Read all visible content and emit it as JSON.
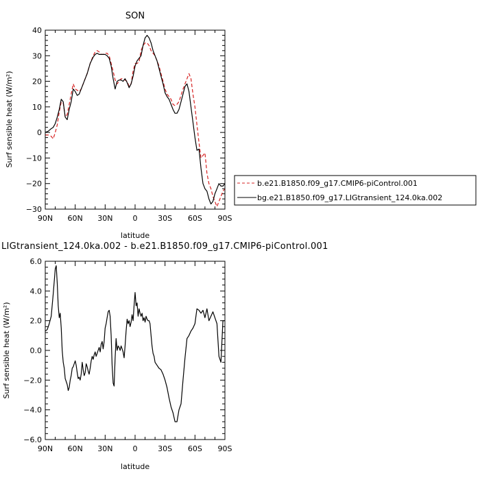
{
  "chart_data": [
    {
      "type": "line",
      "title": "SON",
      "xlabel": "latitude",
      "ylabel": "Surf sensible heat (W/m²)",
      "xlim": [
        90,
        -90
      ],
      "ylim": [
        -30,
        40
      ],
      "xticks": [
        90,
        60,
        30,
        0,
        -30,
        -60,
        -90
      ],
      "xtick_labels": [
        "90N",
        "60N",
        "30N",
        "0",
        "30S",
        "60S",
        "90S"
      ],
      "yticks": [
        -30,
        -20,
        -10,
        0,
        10,
        20,
        30,
        40
      ],
      "ytick_labels": [
        "−30",
        "−20",
        "−10",
        "0",
        "10",
        "20",
        "30",
        "40"
      ],
      "legend_position": "right",
      "series": [
        {
          "name": "b.e21.B1850.f09_g17.CMIP6-piControl.001",
          "color": "#d62020",
          "dash": "dashed",
          "x": [
            90,
            87,
            84,
            82,
            80,
            78,
            76,
            74,
            72,
            70,
            68,
            66,
            64,
            62,
            60,
            58,
            56,
            54,
            52,
            50,
            48,
            45,
            42,
            40,
            38,
            36,
            34,
            32,
            30,
            28,
            26,
            24,
            22,
            20,
            18,
            16,
            14,
            12,
            10,
            8,
            6,
            4,
            2,
            0,
            -2,
            -4,
            -6,
            -8,
            -10,
            -12,
            -14,
            -16,
            -18,
            -20,
            -22,
            -24,
            -26,
            -28,
            -30,
            -32,
            -34,
            -36,
            -38,
            -40,
            -42,
            -44,
            -46,
            -48,
            -50,
            -52,
            -54,
            -56,
            -58,
            -60,
            -62,
            -64,
            -66,
            -68,
            -70,
            -72,
            -74,
            -76,
            -78,
            -80,
            -82,
            -84,
            -86,
            -88,
            -90
          ],
          "values": [
            -1,
            -1,
            -1.5,
            -2.5,
            0,
            3,
            8,
            12,
            11.5,
            6,
            7,
            11,
            15,
            19,
            17,
            16.5,
            16,
            17,
            19,
            21,
            23,
            27,
            30,
            31.5,
            32,
            31.5,
            30.5,
            30.5,
            31,
            31,
            30,
            27,
            24,
            20.5,
            19,
            20,
            21,
            21,
            20.5,
            20,
            18,
            19,
            24,
            27,
            27,
            27.5,
            32,
            34,
            35,
            35,
            34,
            32,
            31,
            30,
            28,
            26,
            23,
            20,
            17,
            15,
            14,
            13,
            11,
            10.5,
            11,
            12,
            14.5,
            17,
            19,
            21,
            23,
            21,
            15,
            10,
            3,
            -4,
            -10,
            -9,
            -8,
            -16,
            -20,
            -22,
            -25,
            -27,
            -29,
            -27,
            -25,
            -23,
            -22
          ]
        },
        {
          "name": "bg.e21.B1850.f09_g17.LIGtransient_124.0ka.002",
          "color": "#000000",
          "dash": "solid",
          "x": [
            90,
            87,
            84,
            82,
            80,
            78,
            76,
            74,
            72,
            70,
            68,
            66,
            64,
            62,
            60,
            58,
            56,
            54,
            52,
            50,
            48,
            45,
            42,
            40,
            38,
            36,
            34,
            32,
            30,
            28,
            26,
            24,
            22,
            20,
            18,
            16,
            14,
            12,
            10,
            8,
            6,
            4,
            2,
            0,
            -2,
            -4,
            -6,
            -8,
            -10,
            -12,
            -14,
            -16,
            -18,
            -20,
            -22,
            -24,
            -26,
            -28,
            -30,
            -32,
            -34,
            -36,
            -38,
            -40,
            -42,
            -44,
            -46,
            -48,
            -50,
            -52,
            -54,
            -56,
            -58,
            -60,
            -62,
            -64,
            -66,
            -68,
            -70,
            -72,
            -74,
            -76,
            -78,
            -80,
            -82,
            -84,
            -86,
            -88,
            -90
          ],
          "values": [
            0,
            0.5,
            1.5,
            2,
            3.5,
            6,
            9,
            13,
            12,
            6,
            5,
            9,
            12,
            17,
            16,
            14.5,
            15,
            17,
            19,
            21,
            23,
            27,
            29.5,
            30.5,
            31,
            30.5,
            30.5,
            30.5,
            30.5,
            30,
            29,
            26,
            21,
            17,
            20,
            20.5,
            20.5,
            20,
            21,
            19.5,
            17.5,
            19,
            22,
            26,
            28,
            29,
            30,
            34,
            37,
            38,
            37,
            35,
            32,
            30,
            28,
            25,
            22,
            19,
            15.5,
            14,
            13,
            11,
            9,
            7.5,
            7.5,
            9,
            12,
            15,
            18,
            19,
            16,
            10,
            4,
            -2,
            -7,
            -6.5,
            -14,
            -20,
            -22,
            -23,
            -26,
            -28,
            -27,
            -24,
            -22,
            -20,
            -21,
            -21,
            -20
          ]
        }
      ]
    },
    {
      "type": "line",
      "title": "LIGtransient_124.0ka.002 - b.e21.B1850.f09_g17.CMIP6-piControl.001",
      "xlabel": "latitude",
      "ylabel": "Surf sensible heat (W/m²)",
      "xlim": [
        90,
        -90
      ],
      "ylim": [
        -6,
        6
      ],
      "xticks": [
        90,
        60,
        30,
        0,
        -30,
        -60,
        -90
      ],
      "xtick_labels": [
        "90N",
        "60N",
        "30N",
        "0",
        "30S",
        "60S",
        "90S"
      ],
      "yticks": [
        -6,
        -4,
        -2,
        0,
        2,
        4,
        6
      ],
      "ytick_labels": [
        "−6.0",
        "−4.0",
        "−2.0",
        "0.0",
        "2.0",
        "4.0",
        "6.0"
      ],
      "series": [
        {
          "color": "#000000",
          "dash": "solid",
          "x": [
            90,
            88,
            86,
            84,
            82,
            80,
            79,
            78,
            77,
            76,
            75,
            74,
            73,
            72,
            71,
            70,
            69,
            68,
            67,
            66,
            65,
            64,
            63,
            62,
            61,
            60,
            59,
            58,
            57,
            56,
            55,
            54,
            53,
            52,
            51,
            50,
            49,
            48,
            47,
            46,
            45,
            44,
            43,
            42,
            41,
            40,
            39,
            38,
            37,
            36,
            35,
            34,
            33,
            32,
            31,
            30,
            29,
            28,
            27,
            26,
            25,
            24,
            23,
            22,
            21,
            20,
            19,
            18,
            17,
            16,
            15,
            14,
            13,
            12,
            11,
            10,
            9,
            8,
            7,
            6,
            5,
            4,
            3,
            2,
            1,
            0,
            -1,
            -2,
            -3,
            -4,
            -5,
            -6,
            -7,
            -8,
            -9,
            -10,
            -11,
            -12,
            -13,
            -14,
            -15,
            -16,
            -17,
            -18,
            -19,
            -20,
            -22,
            -24,
            -26,
            -28,
            -30,
            -32,
            -34,
            -36,
            -38,
            -40,
            -42,
            -44,
            -46,
            -48,
            -50,
            -52,
            -54,
            -56,
            -58,
            -60,
            -62,
            -64,
            -66,
            -68,
            -70,
            -72,
            -74,
            -76,
            -78,
            -80,
            -82,
            -84,
            -86,
            -88,
            -90
          ],
          "values": [
            1.3,
            1.4,
            1.8,
            2.3,
            3.8,
            5.5,
            5.7,
            4.5,
            3.0,
            2.2,
            2.5,
            1.5,
            0.0,
            -0.8,
            -1.2,
            -1.9,
            -2.1,
            -2.3,
            -2.7,
            -2.5,
            -2.0,
            -1.7,
            -1.2,
            -1.1,
            -0.9,
            -0.7,
            -1.0,
            -1.5,
            -1.9,
            -1.8,
            -2.0,
            -1.6,
            -0.8,
            -1.3,
            -1.7,
            -1.5,
            -0.9,
            -1.1,
            -1.4,
            -1.6,
            -1.2,
            -0.7,
            -0.4,
            -0.6,
            -0.3,
            -0.1,
            -0.4,
            -0.2,
            0.0,
            0.2,
            -0.1,
            0.4,
            0.6,
            0.1,
            0.6,
            1.5,
            1.8,
            2.2,
            2.6,
            2.7,
            2.3,
            1.0,
            -1.0,
            -2.2,
            -2.4,
            -0.5,
            0.8,
            0.0,
            0.3,
            0.2,
            0.0,
            0.3,
            0.1,
            -0.1,
            -0.5,
            0.3,
            1.3,
            2.1,
            1.8,
            2.0,
            1.6,
            1.9,
            2.4,
            2.0,
            3.0,
            3.9,
            3.0,
            3.2,
            2.3,
            2.8,
            2.5,
            2.3,
            2.5,
            2.0,
            2.2,
            1.9,
            2.3,
            2.1,
            2.0,
            2.0,
            1.8,
            1.0,
            0.3,
            -0.2,
            -0.4,
            -0.8,
            -1.0,
            -1.2,
            -1.3,
            -1.6,
            -2.0,
            -2.5,
            -3.2,
            -3.8,
            -4.2,
            -4.8,
            -4.8,
            -4.0,
            -3.6,
            -2.0,
            -0.5,
            0.8,
            1.0,
            1.3,
            1.5,
            1.8,
            2.8,
            2.7,
            2.5,
            2.7,
            2.2,
            2.8,
            2.0,
            2.3,
            2.6,
            2.2,
            1.8,
            -0.4,
            -0.8,
            2.0,
            2.0
          ]
        }
      ]
    }
  ]
}
